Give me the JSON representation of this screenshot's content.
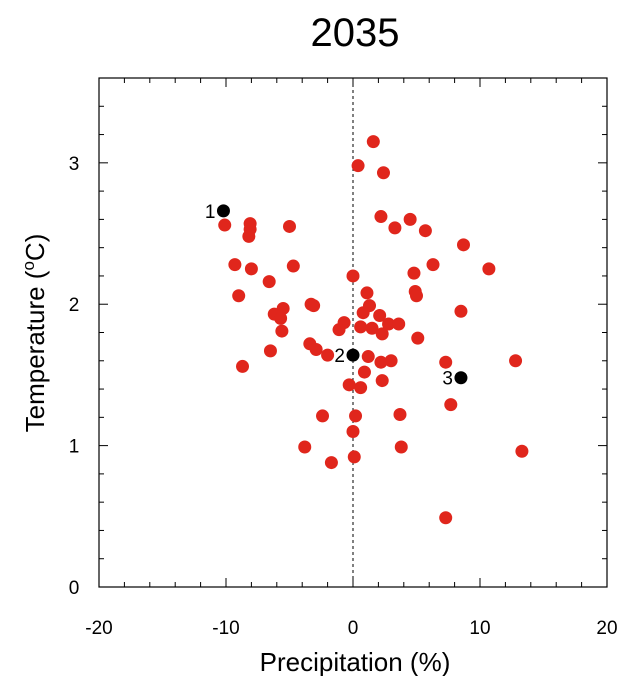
{
  "chart_data": {
    "type": "scatter",
    "title": "2035",
    "xlabel": "Precipitation (%)",
    "ylabel_main": "Temperature (",
    "ylabel_sup": "o",
    "ylabel_end": "C)",
    "xlim": [
      -20,
      20
    ],
    "ylim": [
      0,
      3.6
    ],
    "xticks": [
      -20,
      -10,
      0,
      10,
      20
    ],
    "yticks": [
      0,
      1,
      2,
      3
    ],
    "grid": false,
    "colors": {
      "ensemble": "#e0261c",
      "highlight": "#000000"
    },
    "reference_line": {
      "x": 0,
      "style": "dotted"
    },
    "series": [
      {
        "values": [
          [
            1.6,
            3.15
          ],
          [
            0.4,
            2.98
          ],
          [
            2.4,
            2.93
          ],
          [
            2.2,
            2.62
          ],
          [
            3.3,
            2.54
          ],
          [
            4.5,
            2.6
          ],
          [
            5.7,
            2.52
          ],
          [
            -10.1,
            2.56
          ],
          [
            -8.1,
            2.57
          ],
          [
            -8.1,
            2.53
          ],
          [
            -8.2,
            2.48
          ],
          [
            -5.0,
            2.55
          ],
          [
            -9.3,
            2.28
          ],
          [
            -8.0,
            2.25
          ],
          [
            -4.7,
            2.27
          ],
          [
            -6.6,
            2.16
          ],
          [
            -9.0,
            2.06
          ],
          [
            -5.5,
            1.97
          ],
          [
            -6.2,
            1.93
          ],
          [
            -5.7,
            1.9
          ],
          [
            -5.6,
            1.81
          ],
          [
            -3.3,
            2.0
          ],
          [
            -3.1,
            1.99
          ],
          [
            -6.5,
            1.67
          ],
          [
            -8.7,
            1.56
          ],
          [
            -3.4,
            1.72
          ],
          [
            -2.9,
            1.68
          ],
          [
            -2.0,
            1.64
          ],
          [
            -0.7,
            1.87
          ],
          [
            -1.1,
            1.82
          ],
          [
            0.0,
            2.2
          ],
          [
            1.1,
            2.08
          ],
          [
            1.3,
            1.99
          ],
          [
            0.8,
            1.94
          ],
          [
            0.6,
            1.84
          ],
          [
            1.5,
            1.83
          ],
          [
            2.1,
            1.92
          ],
          [
            2.3,
            1.79
          ],
          [
            2.8,
            1.86
          ],
          [
            3.6,
            1.86
          ],
          [
            1.2,
            1.63
          ],
          [
            2.2,
            1.59
          ],
          [
            3.0,
            1.6
          ],
          [
            0.9,
            1.52
          ],
          [
            2.3,
            1.46
          ],
          [
            -0.3,
            1.43
          ],
          [
            0.6,
            1.41
          ],
          [
            4.8,
            2.22
          ],
          [
            4.9,
            2.09
          ],
          [
            5.0,
            2.06
          ],
          [
            6.3,
            2.28
          ],
          [
            5.1,
            1.76
          ],
          [
            8.5,
            1.95
          ],
          [
            8.7,
            2.42
          ],
          [
            10.7,
            2.25
          ],
          [
            7.3,
            1.59
          ],
          [
            7.7,
            1.29
          ],
          [
            12.8,
            1.6
          ],
          [
            13.3,
            0.96
          ],
          [
            -2.4,
            1.21
          ],
          [
            0.2,
            1.21
          ],
          [
            3.7,
            1.22
          ],
          [
            0.0,
            1.1
          ],
          [
            -3.8,
            0.99
          ],
          [
            3.8,
            0.99
          ],
          [
            -1.7,
            0.88
          ],
          [
            0.1,
            0.92
          ],
          [
            7.3,
            0.49
          ]
        ]
      },
      {
        "values": [
          {
            "x": -10.2,
            "y": 2.66,
            "label": "1"
          },
          {
            "x": 0.0,
            "y": 1.64,
            "label": "2"
          },
          {
            "x": 8.5,
            "y": 1.48,
            "label": "3"
          }
        ]
      }
    ]
  }
}
